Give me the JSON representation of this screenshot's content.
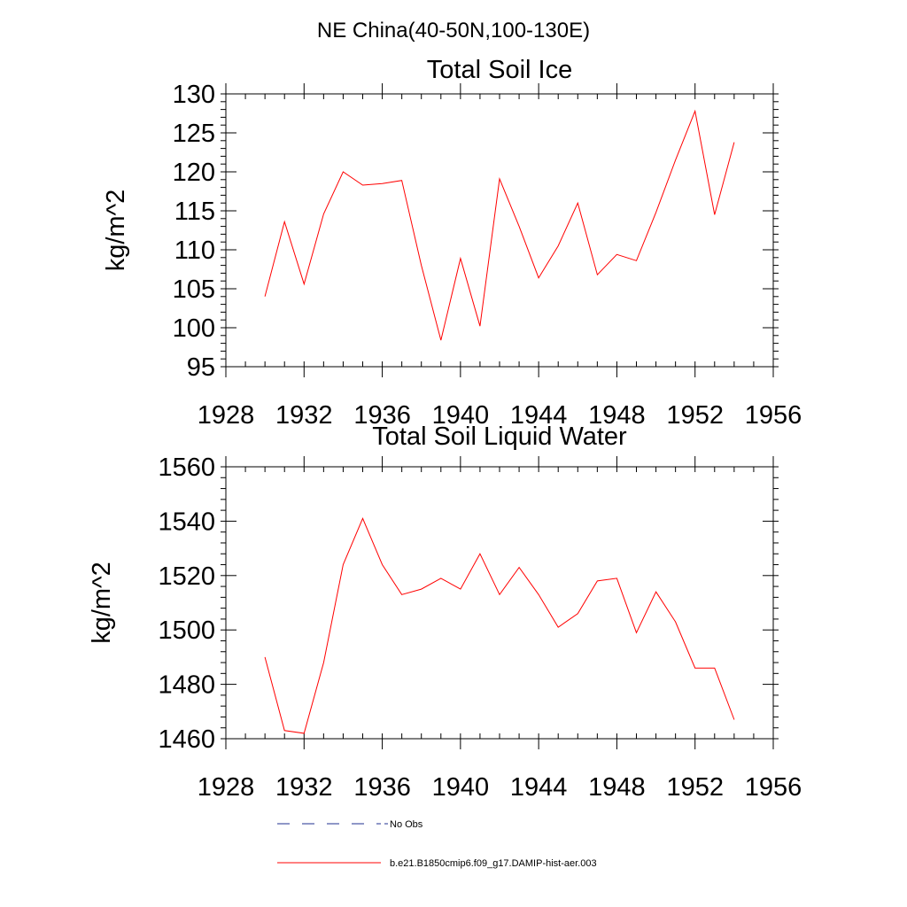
{
  "main_title": "NE China(40-50N,100-130E)",
  "series_color": "#ff0000",
  "noobs_color": "#1f2f8f",
  "legend": {
    "items": [
      {
        "label": "No Obs",
        "style": "dashed",
        "color": "#1f2f8f"
      },
      {
        "label": "b.e21.B1850cmip6.f09_g17.DAMIP-hist-aer.003",
        "style": "solid",
        "color": "#ff0000"
      }
    ]
  },
  "chart_data": [
    {
      "type": "line",
      "title": "Total Soil Ice",
      "xlabel": "",
      "ylabel": "kg/m^2",
      "xlim": [
        1928,
        1956
      ],
      "ylim": [
        95,
        130
      ],
      "xticks": [
        1928,
        1932,
        1936,
        1940,
        1944,
        1948,
        1952,
        1956
      ],
      "xtick_labels": [
        "1928",
        "1932",
        "1936",
        "1940",
        "1944",
        "1948",
        "1952",
        "1956"
      ],
      "yticks": [
        95,
        100,
        105,
        110,
        115,
        120,
        125,
        130
      ],
      "ytick_labels": [
        "95",
        "100",
        "105",
        "110",
        "115",
        "120",
        "125",
        "130"
      ],
      "grid": false,
      "series": [
        {
          "name": "b.e21.B1850cmip6.f09_g17.DAMIP-hist-aer.003",
          "color": "#ff0000",
          "x": [
            1930,
            1931,
            1932,
            1933,
            1934,
            1935,
            1936,
            1937,
            1938,
            1939,
            1940,
            1941,
            1942,
            1943,
            1944,
            1945,
            1946,
            1947,
            1948,
            1949,
            1950,
            1951,
            1952,
            1953,
            1954
          ],
          "values": [
            104.0,
            113.6,
            105.6,
            114.6,
            120.0,
            118.3,
            118.5,
            118.9,
            108.0,
            98.4,
            108.9,
            100.2,
            119.1,
            113.0,
            106.4,
            110.5,
            116.0,
            106.8,
            109.4,
            108.6,
            114.8,
            121.5,
            127.8,
            114.5,
            123.8
          ]
        }
      ]
    },
    {
      "type": "line",
      "title": "Total Soil Liquid Water",
      "xlabel": "",
      "ylabel": "kg/m^2",
      "xlim": [
        1928,
        1956
      ],
      "ylim": [
        1460,
        1560
      ],
      "xticks": [
        1928,
        1932,
        1936,
        1940,
        1944,
        1948,
        1952,
        1956
      ],
      "xtick_labels": [
        "1928",
        "1932",
        "1936",
        "1940",
        "1944",
        "1948",
        "1952",
        "1956"
      ],
      "yticks": [
        1460,
        1480,
        1500,
        1520,
        1540,
        1560
      ],
      "ytick_labels": [
        "1460",
        "1480",
        "1500",
        "1520",
        "1540",
        "1560"
      ],
      "grid": false,
      "series": [
        {
          "name": "b.e21.B1850cmip6.f09_g17.DAMIP-hist-aer.003",
          "color": "#ff0000",
          "x": [
            1930,
            1931,
            1932,
            1933,
            1934,
            1935,
            1936,
            1937,
            1938,
            1939,
            1940,
            1941,
            1942,
            1943,
            1944,
            1945,
            1946,
            1947,
            1948,
            1949,
            1950,
            1951,
            1952,
            1953,
            1954
          ],
          "values": [
            1490,
            1463,
            1462,
            1488,
            1524,
            1541,
            1524,
            1513,
            1515,
            1519,
            1515,
            1528,
            1513,
            1523,
            1513,
            1501,
            1506,
            1518,
            1519,
            1499,
            1514,
            1503,
            1486,
            1486,
            1467
          ]
        }
      ]
    }
  ]
}
